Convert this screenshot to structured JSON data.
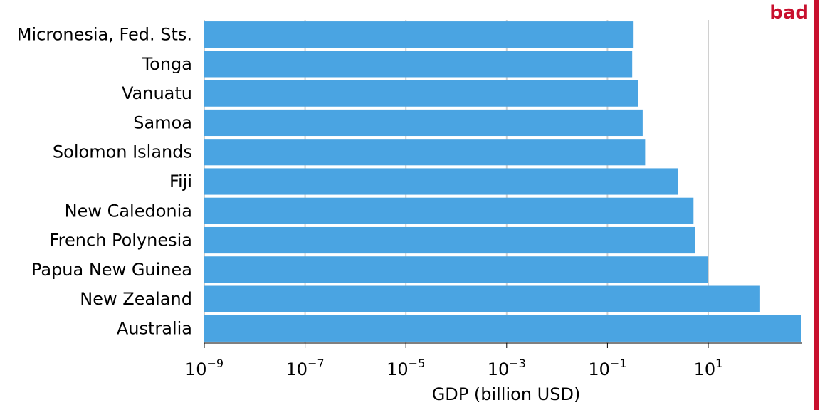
{
  "stamp": {
    "label": "bad",
    "color": "#C8102E"
  },
  "chart_data": {
    "type": "bar",
    "orientation": "horizontal",
    "bar_color": "#4AA4E2",
    "xlabel": "GDP (billion USD)",
    "x_scale": "log",
    "xlim": [
      1e-09,
      800
    ],
    "grid": "vertical lines at major ticks",
    "categories": [
      "Micronesia, Fed. Sts.",
      "Tonga",
      "Vanuatu",
      "Samoa",
      "Solomon Islands",
      "Fiji",
      "New Caledonia",
      "French Polynesia",
      "Papua New Guinea",
      "New Zealand",
      "Australia"
    ],
    "values": [
      0.32,
      0.31,
      0.41,
      0.5,
      0.56,
      2.5,
      5.1,
      5.5,
      10,
      107,
      700
    ],
    "x_ticks": [
      {
        "base": "10",
        "exp": "−9"
      },
      {
        "base": "10",
        "exp": "−7"
      },
      {
        "base": "10",
        "exp": "−5"
      },
      {
        "base": "10",
        "exp": "−3"
      },
      {
        "base": "10",
        "exp": "−1"
      },
      {
        "base": "10",
        "exp": "1"
      }
    ],
    "x_tick_values": [
      1e-09,
      1e-07,
      1e-05,
      0.001,
      0.1,
      10
    ]
  }
}
